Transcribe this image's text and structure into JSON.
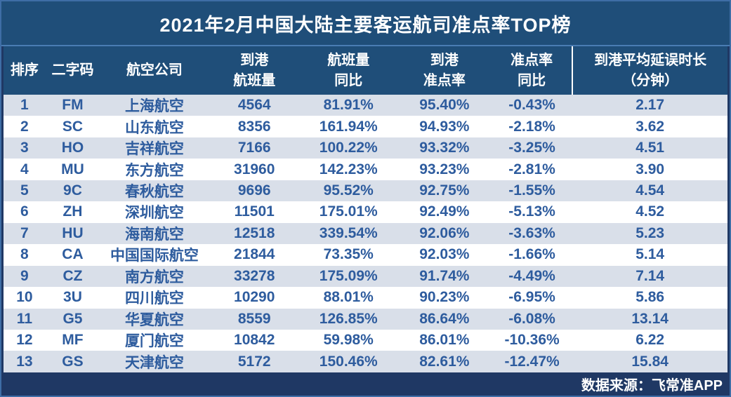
{
  "chart_data": {
    "type": "table",
    "title": "2021年2月中国大陆主要客运航司准点率TOP榜",
    "columns": [
      {
        "key": "rank",
        "label": "排序",
        "label2": ""
      },
      {
        "key": "code",
        "label": "二字码",
        "label2": ""
      },
      {
        "key": "airline",
        "label": "航空公司",
        "label2": ""
      },
      {
        "key": "arrival-flights",
        "label": "到港",
        "label2": "航班量"
      },
      {
        "key": "flights-yoy",
        "label": "航班量",
        "label2": "同比"
      },
      {
        "key": "arrival-otp",
        "label": "到港",
        "label2": "准点率"
      },
      {
        "key": "otp-yoy",
        "label": "准点率",
        "label2": "同比"
      },
      {
        "key": "avg-delay",
        "label": "到港平均延误时长",
        "label2": "（分钟）"
      }
    ],
    "rows": [
      [
        "1",
        "FM",
        "上海航空",
        "4564",
        "81.91%",
        "95.40%",
        "-0.43%",
        "2.17"
      ],
      [
        "2",
        "SC",
        "山东航空",
        "8356",
        "161.94%",
        "94.93%",
        "-2.18%",
        "3.62"
      ],
      [
        "3",
        "HO",
        "吉祥航空",
        "7166",
        "100.22%",
        "93.32%",
        "-3.25%",
        "4.51"
      ],
      [
        "4",
        "MU",
        "东方航空",
        "31960",
        "142.23%",
        "93.23%",
        "-2.81%",
        "3.90"
      ],
      [
        "5",
        "9C",
        "春秋航空",
        "9696",
        "95.52%",
        "92.75%",
        "-1.55%",
        "4.54"
      ],
      [
        "6",
        "ZH",
        "深圳航空",
        "11501",
        "175.01%",
        "92.49%",
        "-5.13%",
        "4.52"
      ],
      [
        "7",
        "HU",
        "海南航空",
        "12518",
        "339.54%",
        "92.06%",
        "-3.63%",
        "5.23"
      ],
      [
        "8",
        "CA",
        "中国国际航空",
        "21844",
        "73.35%",
        "92.03%",
        "-1.66%",
        "5.14"
      ],
      [
        "9",
        "CZ",
        "南方航空",
        "33278",
        "175.09%",
        "91.74%",
        "-4.49%",
        "7.14"
      ],
      [
        "10",
        "3U",
        "四川航空",
        "10290",
        "88.01%",
        "90.23%",
        "-6.95%",
        "5.86"
      ],
      [
        "11",
        "G5",
        "华夏航空",
        "8559",
        "126.85%",
        "86.64%",
        "-6.08%",
        "13.14"
      ],
      [
        "12",
        "MF",
        "厦门航空",
        "10842",
        "59.98%",
        "86.01%",
        "-10.36%",
        "6.22"
      ],
      [
        "13",
        "GS",
        "天津航空",
        "5172",
        "150.46%",
        "82.61%",
        "-12.47%",
        "15.84"
      ]
    ],
    "source_note": "数据来源：飞常准APP"
  },
  "colors": {
    "header_bg": "#1F4E79",
    "footer_bg": "#1F3864",
    "stripe_row": "#D9DFE9",
    "plain_row": "#FFFFFF",
    "data_text": "#2E5C9E",
    "title_text": "#FFFFFF",
    "title_divider": "#4A7CB3",
    "outer_border": "#3E6DA6"
  }
}
